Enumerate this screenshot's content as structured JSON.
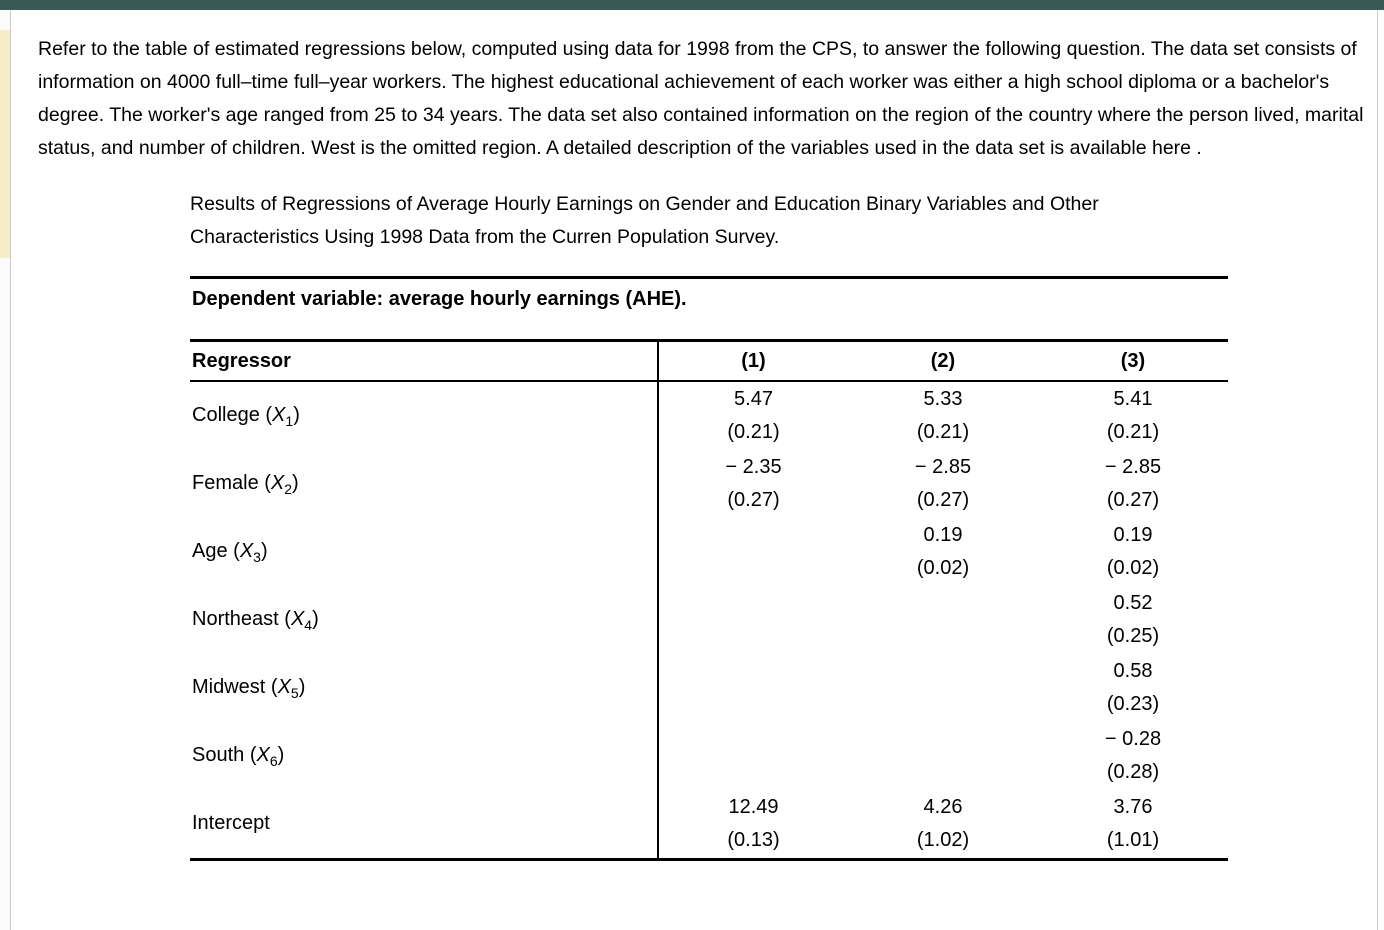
{
  "colors": {
    "top_bar": "#3c5a55",
    "left_highlight": "#f6eecb",
    "rule": "#000000"
  },
  "intro": {
    "before": "Refer to the table of estimated regressions below, computed using data for 1998 from the CPS, to answer the following question. The data set consists of information on 4000 full–time full–year workers. The highest educational achievement of each worker was either a high school diploma or a bachelor's degree. The worker's age ranged from 25 to 34 years. The data set also contained information on the region of the country where the person lived, marital status, and number of children. West is the omitted region. A detailed description of the variables used in the data set is available ",
    "link": "here",
    "after": " ."
  },
  "caption": "Results of Regressions of Average Hourly Earnings on Gender and Education Binary Variables and Other Characteristics Using 1998 Data from the Curren Population Survey.",
  "table": {
    "dependent_variable": "Dependent variable: average hourly earnings (AHE).",
    "header": {
      "regressor": "Regressor",
      "c1": "(1)",
      "c2": "(2)",
      "c3": "(3)"
    },
    "rows": [
      {
        "label": {
          "pre": "College (",
          "var": "X",
          "sub": "1",
          "post": ")"
        },
        "cells": [
          {
            "coef": "5.47",
            "se": "(0.21)"
          },
          {
            "coef": "5.33",
            "se": "(0.21)"
          },
          {
            "coef": "5.41",
            "se": "(0.21)"
          }
        ]
      },
      {
        "label": {
          "pre": "Female (",
          "var": "X",
          "sub": "2",
          "post": ")"
        },
        "cells": [
          {
            "coef": "− 2.35",
            "se": "(0.27)"
          },
          {
            "coef": "− 2.85",
            "se": "(0.27)"
          },
          {
            "coef": "− 2.85",
            "se": "(0.27)"
          }
        ]
      },
      {
        "label": {
          "pre": "Age (",
          "var": "X",
          "sub": "3",
          "post": ")"
        },
        "cells": [
          {
            "coef": "",
            "se": ""
          },
          {
            "coef": "0.19",
            "se": "(0.02)"
          },
          {
            "coef": "0.19",
            "se": "(0.02)"
          }
        ]
      },
      {
        "label": {
          "pre": "Northeast (",
          "var": "X",
          "sub": "4",
          "post": ")"
        },
        "cells": [
          {
            "coef": "",
            "se": ""
          },
          {
            "coef": "",
            "se": ""
          },
          {
            "coef": "0.52",
            "se": "(0.25)"
          }
        ]
      },
      {
        "label": {
          "pre": "Midwest (",
          "var": "X",
          "sub": "5",
          "post": ")"
        },
        "cells": [
          {
            "coef": "",
            "se": ""
          },
          {
            "coef": "",
            "se": ""
          },
          {
            "coef": "0.58",
            "se": "(0.23)"
          }
        ]
      },
      {
        "label": {
          "pre": "South (",
          "var": "X",
          "sub": "6",
          "post": ")"
        },
        "cells": [
          {
            "coef": "",
            "se": ""
          },
          {
            "coef": "",
            "se": ""
          },
          {
            "coef": "− 0.28",
            "se": "(0.28)"
          }
        ]
      },
      {
        "label": {
          "pre": "Intercept",
          "var": "",
          "sub": "",
          "post": ""
        },
        "cells": [
          {
            "coef": "12.49",
            "se": "(0.13)"
          },
          {
            "coef": "4.26",
            "se": "(1.02)"
          },
          {
            "coef": "3.76",
            "se": "(1.01)"
          }
        ]
      }
    ]
  }
}
